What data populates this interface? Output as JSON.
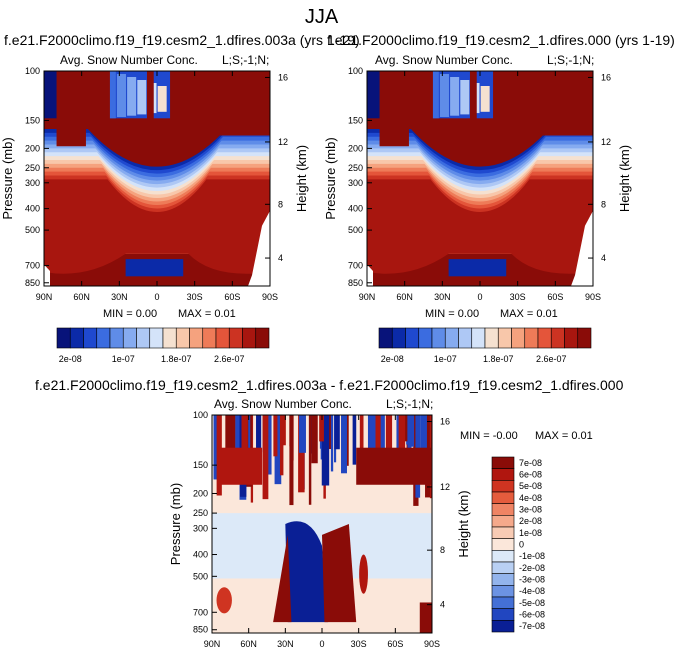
{
  "figure": {
    "title": "JJA",
    "bottom_panel_title": "f.e21.F2000climo.f19_f19.cesm2_1.dfires.003a - f.e21.F2000climo.f19_f19.cesm2_1.dfires.000"
  },
  "chart_data": [
    {
      "type": "heatmap",
      "title": "f.e21.F2000climo.f19_f19.cesm2_1.dfires.003a (yrs 1-19)",
      "left_string": "Avg. Snow Number Conc.",
      "right_string": "L;S;-1;N;",
      "xlabel": "",
      "ylabel": "Pressure (mb)",
      "ylabel_right": "Height (km)",
      "x_ticks": [
        "90N",
        "60N",
        "30N",
        "0",
        "30S",
        "60S",
        "90S"
      ],
      "y_ticks": [
        "100",
        "150",
        "200",
        "250",
        "300",
        "400",
        "500",
        "700",
        "850"
      ],
      "y_right_ticks": [
        "16",
        "12",
        "8",
        "4"
      ],
      "min_text": "MIN =  0.00",
      "max_text": "MAX =  0.01",
      "colorbar_labels": [
        "2e-08",
        "1e-07",
        "1.8e-07",
        "2.6e-07"
      ]
    },
    {
      "type": "heatmap",
      "title": "f.e21.F2000climo.f19_f19.cesm2_1.dfires.000 (yrs 1-19)",
      "left_string": "Avg. Snow Number Conc.",
      "right_string": "L;S;-1;N;",
      "xlabel": "",
      "ylabel": "Pressure (mb)",
      "ylabel_right": "Height (km)",
      "x_ticks": [
        "90N",
        "60N",
        "30N",
        "0",
        "30S",
        "60S",
        "90S"
      ],
      "y_ticks": [
        "100",
        "150",
        "200",
        "250",
        "300",
        "400",
        "500",
        "700",
        "850"
      ],
      "y_right_ticks": [
        "16",
        "12",
        "8",
        "4"
      ],
      "min_text": "MIN =  0.00",
      "max_text": "MAX =  0.01",
      "colorbar_labels": [
        "2e-08",
        "1e-07",
        "1.8e-07",
        "2.6e-07"
      ]
    },
    {
      "type": "heatmap",
      "title": "",
      "left_string": "Avg. Snow Number Conc.",
      "right_string": "L;S;-1;N;",
      "xlabel": "",
      "ylabel": "Pressure (mb)",
      "ylabel_right": "Height (km)",
      "x_ticks": [
        "90N",
        "60N",
        "30N",
        "0",
        "30S",
        "60S",
        "90S"
      ],
      "y_ticks": [
        "100",
        "150",
        "200",
        "250",
        "300",
        "400",
        "500",
        "700",
        "850"
      ],
      "y_right_ticks": [
        "16",
        "12",
        "8",
        "4"
      ],
      "min_text": "MIN = -0.00",
      "max_text": "MAX =  0.01",
      "colorbar_labels": [
        "7e-08",
        "6e-08",
        "5e-08",
        "4e-08",
        "3e-08",
        "2e-08",
        "1e-08",
        "0",
        "-1e-08",
        "-2e-08",
        "-3e-08",
        "-4e-08",
        "-5e-08",
        "-6e-08",
        "-7e-08"
      ]
    }
  ],
  "colors": {
    "seq": [
      "#08137a",
      "#0b2aa8",
      "#1f49cf",
      "#3b6ce0",
      "#5f8ce8",
      "#86abf0",
      "#aec8f5",
      "#d4e3f9",
      "#f5e1d0",
      "#f8c7aa",
      "#f5a27e",
      "#ee7b58",
      "#e4553a",
      "#cc3322",
      "#a8160f",
      "#8a0c08"
    ],
    "div": [
      "#8a0c08",
      "#b0160f",
      "#cf3421",
      "#e55c3d",
      "#ef8464",
      "#f5a98b",
      "#f8cbb4",
      "#fbe7da",
      "#dce9f8",
      "#b9d0f3",
      "#93b4ec",
      "#6c93e3",
      "#4470d6",
      "#2146c0",
      "#0a1f95"
    ]
  }
}
